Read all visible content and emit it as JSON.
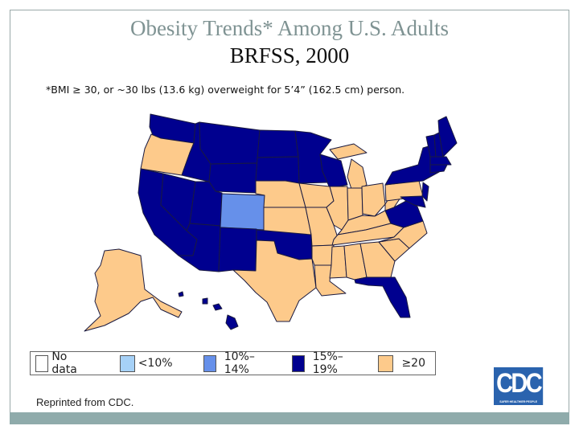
{
  "title": "Obesity Trends* Among U.S. Adults",
  "subtitle": "BRFSS, 2000",
  "footnote": "*BMI ≥ 30, or ~30 lbs (13.6 kg) overweight for 5’4” (162.5 cm) person.",
  "credit": "Reprinted from CDC.",
  "logo": {
    "text": "CDC",
    "tagline": "SAFER·HEALTHIER·PEOPLE"
  },
  "legend": [
    {
      "label": "No data",
      "color": "#ffffff"
    },
    {
      "label": "<10%",
      "color": "#a6d1f7"
    },
    {
      "label": "10%–14%",
      "color": "#6690ea"
    },
    {
      "label": "15%–19%",
      "color": "#00008f"
    },
    {
      "label": "≥20",
      "color": "#fdca8b"
    }
  ],
  "colors": {
    "bar": "#8fabab",
    "title": "#7f9393",
    "border": "#1a1a40"
  },
  "map_data": {
    "categories": [
      "No data",
      "<10%",
      "10%–14%",
      "15%–19%",
      "≥20"
    ],
    "states": {
      "WA": 3,
      "OR": 4,
      "CA": 3,
      "NV": 3,
      "ID": 3,
      "MT": 3,
      "WY": 3,
      "UT": 3,
      "CO": 2,
      "AZ": 3,
      "NM": 3,
      "ND": 3,
      "SD": 3,
      "NE": 4,
      "KS": 4,
      "OK": 3,
      "TX": 4,
      "MN": 3,
      "IA": 4,
      "MO": 4,
      "AR": 4,
      "LA": 4,
      "WI": 3,
      "IL": 4,
      "MI": 4,
      "IN": 4,
      "OH": 4,
      "KY": 4,
      "TN": 4,
      "MS": 4,
      "AL": 4,
      "GA": 4,
      "FL": 3,
      "SC": 4,
      "NC": 4,
      "VA": 3,
      "WV": 4,
      "PA": 4,
      "NY": 3,
      "MD": 3,
      "NJ": 3,
      "VT": 3,
      "NH": 3,
      "ME": 3,
      "MA": 3,
      "CT": 3,
      "AK": 4,
      "HI": 3
    }
  }
}
